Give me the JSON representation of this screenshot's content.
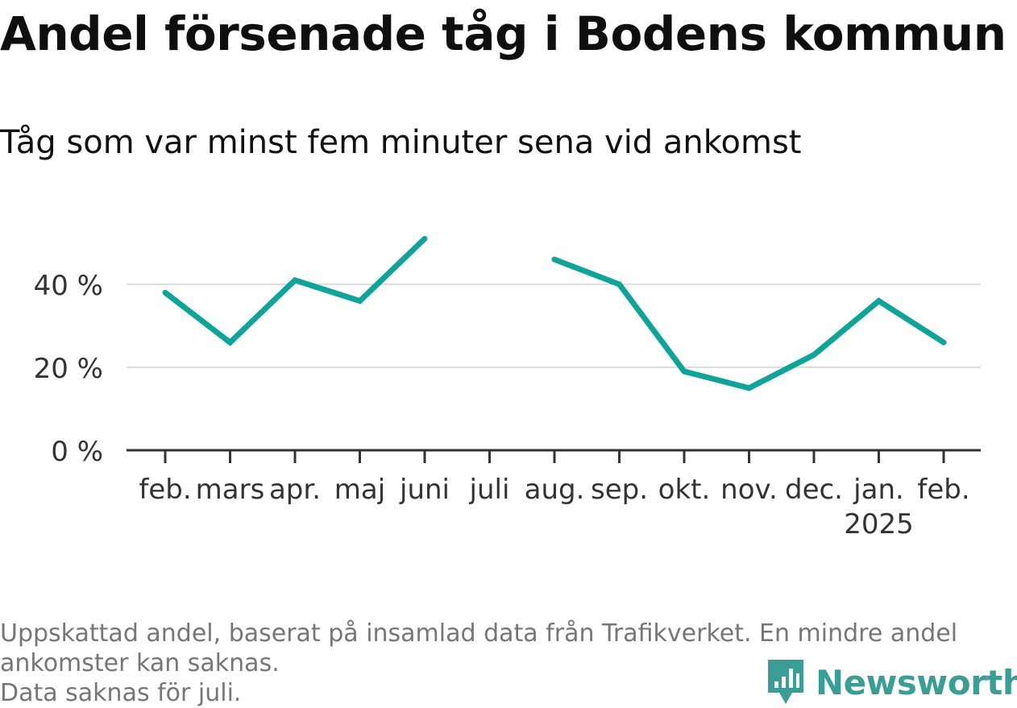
{
  "header": {
    "title": "Andel försenade tåg i Bodens kommun",
    "subtitle": "Tåg som var minst fem minuter sena vid ankomst"
  },
  "footer": {
    "note_line1": "Uppskattad andel, baserat på insamlad data från Trafikverket. En mindre andel",
    "note_line2": "ankomster kan saknas.",
    "note_line3": "Data saknas för juli."
  },
  "brand": {
    "name": "Newsworthy",
    "icon": "newsworthy-logo-icon",
    "color": "#3a9d96"
  },
  "chart_data": {
    "type": "line",
    "categories": [
      "feb.",
      "mars",
      "apr.",
      "maj",
      "juni",
      "juli",
      "aug.",
      "sep.",
      "okt.",
      "nov.",
      "dec.",
      "jan.",
      "feb."
    ],
    "category_sublabels": [
      "",
      "",
      "",
      "",
      "",
      "",
      "",
      "",
      "",
      "",
      "",
      "2025",
      ""
    ],
    "series": [
      {
        "values": [
          38,
          26,
          41,
          36,
          51,
          null,
          46,
          40,
          19,
          15,
          23,
          36,
          26
        ],
        "color": "#0fa39a"
      }
    ],
    "ylim": [
      0,
      55
    ],
    "yticks": [
      0,
      20,
      40
    ],
    "ytick_labels": [
      "0 %",
      "20 %",
      "40 %"
    ],
    "grid": true,
    "legend": "none"
  }
}
